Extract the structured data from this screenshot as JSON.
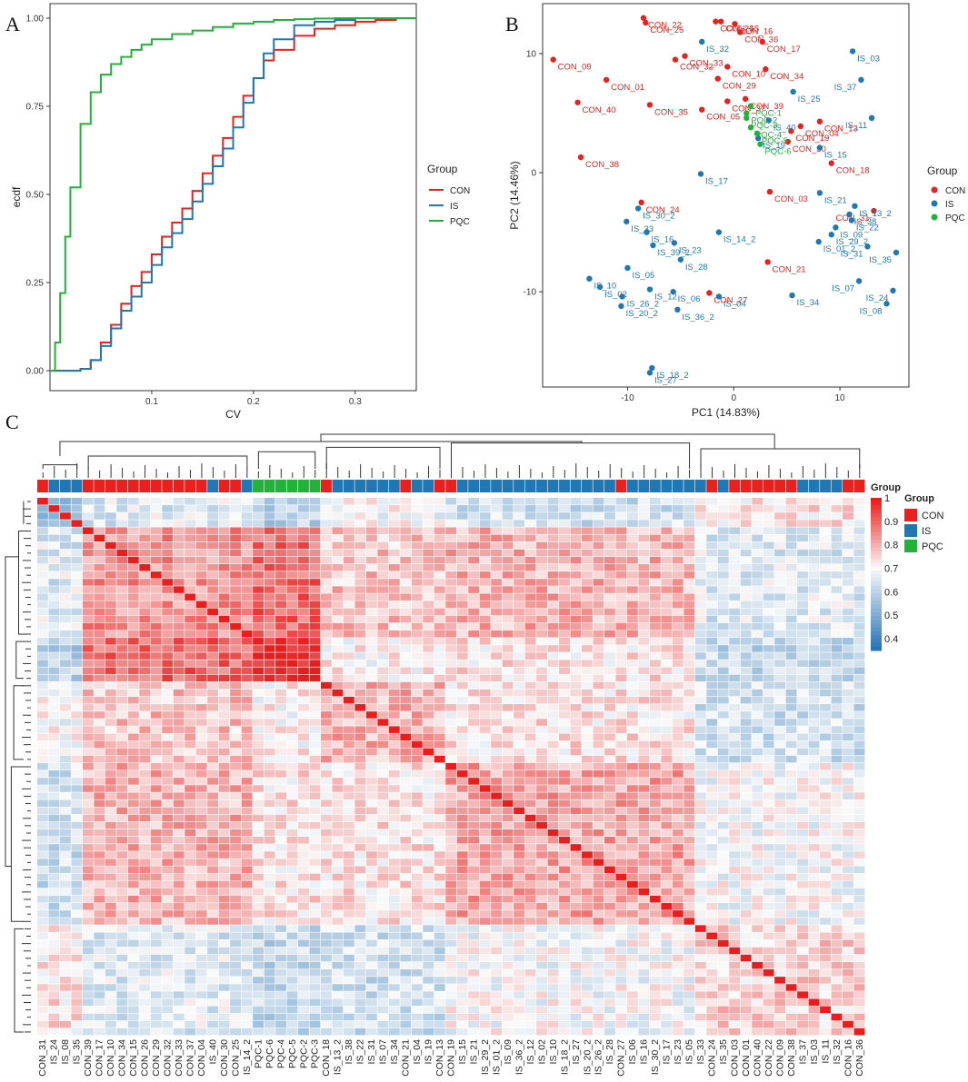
{
  "panel_labels": {
    "a": "A",
    "b": "B",
    "c": "C"
  },
  "colors": {
    "CON": "#e8211f",
    "IS": "#1f78b4",
    "PQC": "#22b23a"
  },
  "chart_data": [
    {
      "id": "A",
      "type": "line",
      "title": "",
      "xlabel": "CV",
      "ylabel": "ecdf",
      "xlim": [
        0,
        0.36
      ],
      "ylim": [
        0,
        1
      ],
      "xticks": [
        0.1,
        0.2,
        0.3
      ],
      "yticks": [
        0,
        0.25,
        0.5,
        0.75,
        1
      ],
      "xtick_labels": [
        "0.1",
        "0.2",
        "0.3"
      ],
      "ytick_labels": [
        "0.00",
        "0.25",
        "0.50",
        "0.75",
        "1.00"
      ],
      "legend_title": "Group",
      "legend_position": "right",
      "series": [
        {
          "name": "CON",
          "x": [
            0,
            0.025,
            0.03,
            0.04,
            0.05,
            0.06,
            0.07,
            0.08,
            0.09,
            0.1,
            0.11,
            0.12,
            0.13,
            0.14,
            0.15,
            0.16,
            0.17,
            0.18,
            0.19,
            0.2,
            0.21,
            0.22,
            0.24,
            0.26,
            0.28,
            0.3,
            0.32,
            0.34,
            0.36
          ],
          "y": [
            0,
            0,
            0.005,
            0.03,
            0.08,
            0.13,
            0.19,
            0.24,
            0.28,
            0.33,
            0.38,
            0.42,
            0.46,
            0.51,
            0.56,
            0.61,
            0.66,
            0.72,
            0.78,
            0.83,
            0.88,
            0.91,
            0.95,
            0.97,
            0.98,
            0.99,
            0.995,
            1.0,
            1.0
          ]
        },
        {
          "name": "IS",
          "x": [
            0,
            0.025,
            0.03,
            0.04,
            0.05,
            0.06,
            0.07,
            0.08,
            0.09,
            0.1,
            0.11,
            0.12,
            0.13,
            0.14,
            0.15,
            0.16,
            0.17,
            0.18,
            0.19,
            0.2,
            0.21,
            0.22,
            0.24,
            0.26,
            0.28,
            0.3,
            0.32,
            0.34,
            0.36
          ],
          "y": [
            0,
            0,
            0.005,
            0.03,
            0.07,
            0.12,
            0.17,
            0.21,
            0.25,
            0.3,
            0.35,
            0.39,
            0.43,
            0.48,
            0.53,
            0.58,
            0.63,
            0.69,
            0.76,
            0.83,
            0.9,
            0.94,
            0.98,
            0.99,
            0.995,
            1.0,
            1.0,
            1.0,
            1.0
          ]
        },
        {
          "name": "PQC",
          "x": [
            0,
            0.005,
            0.01,
            0.015,
            0.02,
            0.03,
            0.04,
            0.05,
            0.06,
            0.07,
            0.08,
            0.09,
            0.1,
            0.12,
            0.14,
            0.16,
            0.18,
            0.2,
            0.22,
            0.24,
            0.26,
            0.28,
            0.3,
            0.32,
            0.34,
            0.36
          ],
          "y": [
            0,
            0.08,
            0.22,
            0.38,
            0.52,
            0.7,
            0.79,
            0.84,
            0.87,
            0.89,
            0.91,
            0.925,
            0.94,
            0.955,
            0.965,
            0.975,
            0.985,
            0.99,
            0.995,
            0.997,
            0.999,
            1.0,
            1.0,
            1.0,
            1.0,
            1.0
          ]
        }
      ]
    },
    {
      "id": "B",
      "type": "scatter",
      "title": "",
      "xlabel": "PC1 (14.83%)",
      "ylabel": "PC2 (14.46%)",
      "xlim": [
        -18,
        16.5
      ],
      "ylim": [
        -18,
        14.2
      ],
      "xticks": [
        -10,
        0,
        10
      ],
      "yticks": [
        -10,
        0,
        10
      ],
      "legend_title": "Group",
      "legend_position": "right",
      "legend_entries": [
        "CON",
        "IS",
        "PQC"
      ],
      "points": [
        {
          "label": "CON_22",
          "group": "CON",
          "x": -8.5,
          "y": 13.0
        },
        {
          "label": "CON_25",
          "group": "CON",
          "x": -8.3,
          "y": 12.6
        },
        {
          "label": "CON_26",
          "group": "CON",
          "x": -1.7,
          "y": 12.7
        },
        {
          "label": "CON_15",
          "group": "CON",
          "x": -1.2,
          "y": 12.7
        },
        {
          "label": "CON_16",
          "group": "CON",
          "x": 0.1,
          "y": 12.5
        },
        {
          "label": "CON_36",
          "group": "CON",
          "x": 0.6,
          "y": 11.8
        },
        {
          "label": "CON_17",
          "group": "CON",
          "x": 2.7,
          "y": 11.0
        },
        {
          "label": "CON_33",
          "group": "CON",
          "x": -4.6,
          "y": 9.8
        },
        {
          "label": "CON_32",
          "group": "CON",
          "x": -5.5,
          "y": 9.5
        },
        {
          "label": "CON_09",
          "group": "CON",
          "x": -17.0,
          "y": 9.5
        },
        {
          "label": "CON_10",
          "group": "CON",
          "x": -0.6,
          "y": 8.9
        },
        {
          "label": "CON_34",
          "group": "CON",
          "x": 3.0,
          "y": 8.7
        },
        {
          "label": "CON_29",
          "group": "CON",
          "x": -1.5,
          "y": 7.9
        },
        {
          "label": "CON_01",
          "group": "CON",
          "x": -12.0,
          "y": 7.8
        },
        {
          "label": "CON_40",
          "group": "CON",
          "x": -14.7,
          "y": 5.9
        },
        {
          "label": "CON_35",
          "group": "CON",
          "x": -7.9,
          "y": 5.7
        },
        {
          "label": "CON_37",
          "group": "CON",
          "x": -0.6,
          "y": 6.0
        },
        {
          "label": "CON_39",
          "group": "CON",
          "x": 1.1,
          "y": 6.2
        },
        {
          "label": "CON_05",
          "group": "CON",
          "x": -3.0,
          "y": 5.3
        },
        {
          "label": "CON_19",
          "group": "CON",
          "x": 5.4,
          "y": 3.5
        },
        {
          "label": "CON_13",
          "group": "CON",
          "x": 8.1,
          "y": 4.3
        },
        {
          "label": "CON_04",
          "group": "CON",
          "x": 6.3,
          "y": 3.9
        },
        {
          "label": "CON_30",
          "group": "CON",
          "x": 5.1,
          "y": 2.6
        },
        {
          "label": "CON_38",
          "group": "CON",
          "x": -14.4,
          "y": 1.3
        },
        {
          "label": "CON_18",
          "group": "CON",
          "x": 9.2,
          "y": 0.8
        },
        {
          "label": "CON_24",
          "group": "CON",
          "x": -8.7,
          "y": -2.5
        },
        {
          "label": "CON_03",
          "group": "CON",
          "x": 3.4,
          "y": -1.6
        },
        {
          "label": "CON_31",
          "group": "CON",
          "x": 13.2,
          "y": -3.2
        },
        {
          "label": "CON_21",
          "group": "CON",
          "x": 3.2,
          "y": -7.5
        },
        {
          "label": "CON_27",
          "group": "CON",
          "x": -2.3,
          "y": -10.1
        },
        {
          "label": "IS_32",
          "group": "IS",
          "x": -3.0,
          "y": 11.0
        },
        {
          "label": "IS_03",
          "group": "IS",
          "x": 11.2,
          "y": 10.2
        },
        {
          "label": "IS_37",
          "group": "IS",
          "x": 12.0,
          "y": 7.8
        },
        {
          "label": "IS_25",
          "group": "IS",
          "x": 5.6,
          "y": 6.8
        },
        {
          "label": "IS_40",
          "group": "IS",
          "x": 3.3,
          "y": 4.4
        },
        {
          "label": "IS_11",
          "group": "IS",
          "x": 13.0,
          "y": 4.6
        },
        {
          "label": "IS_19",
          "group": "IS",
          "x": 2.3,
          "y": 2.9
        },
        {
          "label": "IS_15",
          "group": "IS",
          "x": 8.1,
          "y": 2.1
        },
        {
          "label": "IS_17",
          "group": "IS",
          "x": -3.1,
          "y": -0.1
        },
        {
          "label": "IS_21",
          "group": "IS",
          "x": 8.1,
          "y": -1.7
        },
        {
          "label": "IS_13_2",
          "group": "IS",
          "x": 11.4,
          "y": -2.8
        },
        {
          "label": "IS_38",
          "group": "IS",
          "x": 10.9,
          "y": -3.5
        },
        {
          "label": "IS_22",
          "group": "IS",
          "x": 11.1,
          "y": -4.0
        },
        {
          "label": "IS_09",
          "group": "IS",
          "x": 9.6,
          "y": -4.6
        },
        {
          "label": "IS_29_2",
          "group": "IS",
          "x": 9.2,
          "y": -5.2
        },
        {
          "label": "IS_01_2",
          "group": "IS",
          "x": 8.0,
          "y": -5.8
        },
        {
          "label": "IS_31",
          "group": "IS",
          "x": 12.6,
          "y": -6.2
        },
        {
          "label": "IS_35",
          "group": "IS",
          "x": 15.3,
          "y": -6.7
        },
        {
          "label": "IS_30_2",
          "group": "IS",
          "x": -9.0,
          "y": -3.0
        },
        {
          "label": "IS_33",
          "group": "IS",
          "x": -10.1,
          "y": -4.1
        },
        {
          "label": "IS_14_2",
          "group": "IS",
          "x": -1.4,
          "y": -5.0
        },
        {
          "label": "IS_16",
          "group": "IS",
          "x": -8.2,
          "y": -5.0
        },
        {
          "label": "IS_39_2",
          "group": "IS",
          "x": -7.6,
          "y": -6.1
        },
        {
          "label": "IS_23",
          "group": "IS",
          "x": -5.6,
          "y": -5.9
        },
        {
          "label": "IS_28",
          "group": "IS",
          "x": -5.0,
          "y": -7.3
        },
        {
          "label": "IS_05",
          "group": "IS",
          "x": -10.0,
          "y": -8.0
        },
        {
          "label": "IS_10",
          "group": "IS",
          "x": -13.6,
          "y": -8.9
        },
        {
          "label": "IS_02",
          "group": "IS",
          "x": -12.6,
          "y": -9.6
        },
        {
          "label": "IS_12",
          "group": "IS",
          "x": -7.9,
          "y": -9.8
        },
        {
          "label": "IS_06",
          "group": "IS",
          "x": -5.7,
          "y": -10.0
        },
        {
          "label": "IS_04",
          "group": "IS",
          "x": -1.4,
          "y": -10.4
        },
        {
          "label": "IS_26_2",
          "group": "IS",
          "x": -10.5,
          "y": -10.4
        },
        {
          "label": "IS_20_2",
          "group": "IS",
          "x": -10.6,
          "y": -11.2
        },
        {
          "label": "IS_36_2",
          "group": "IS",
          "x": -5.3,
          "y": -11.5
        },
        {
          "label": "IS_34",
          "group": "IS",
          "x": 5.5,
          "y": -10.3
        },
        {
          "label": "IS_07",
          "group": "IS",
          "x": 11.8,
          "y": -9.1
        },
        {
          "label": "IS_24",
          "group": "IS",
          "x": 15.0,
          "y": -9.9
        },
        {
          "label": "IS_08",
          "group": "IS",
          "x": 14.4,
          "y": -11.0
        },
        {
          "label": "IS_18_2",
          "group": "IS",
          "x": -7.7,
          "y": -16.4
        },
        {
          "label": "IS_27",
          "group": "IS",
          "x": -7.9,
          "y": -16.8
        },
        {
          "label": "PQC-1",
          "group": "PQC",
          "x": 1.6,
          "y": 5.6
        },
        {
          "label": "PQC-2",
          "group": "PQC",
          "x": 1.2,
          "y": 5.0
        },
        {
          "label": "PQC-3",
          "group": "PQC",
          "x": 1.2,
          "y": 4.6
        },
        {
          "label": "PQC-4",
          "group": "PQC",
          "x": 1.6,
          "y": 3.8
        },
        {
          "label": "PQC-5",
          "group": "PQC",
          "x": 2.2,
          "y": 3.3
        },
        {
          "label": "PQC-6",
          "group": "PQC",
          "x": 2.5,
          "y": 2.4
        }
      ]
    },
    {
      "id": "C",
      "type": "heatmap",
      "title": "",
      "legend_title": "Group",
      "colorbar_title": "Group",
      "colorbar_ticks": [
        "1",
        "0.9",
        "0.8",
        "0.7",
        "0.6",
        "0.5",
        "0.4"
      ],
      "colorbar_range": [
        0.35,
        1.0
      ],
      "legend_entries": [
        "CON",
        "IS",
        "PQC"
      ],
      "column_labels": [
        "CON_31",
        "IS_24",
        "IS_08",
        "IS_35",
        "CON_39",
        "CON_17",
        "CON_10",
        "CON_34",
        "CON_15",
        "CON_26",
        "CON_29",
        "CON_32",
        "CON_33",
        "CON_37",
        "CON_04",
        "IS_40",
        "CON_30",
        "CON_25",
        "IS_14_2",
        "PQC-1",
        "PQC-6",
        "PQC-4",
        "PQC-5",
        "PQC-2",
        "PQC-3",
        "CON_18",
        "IS_13_2",
        "IS_38",
        "IS_22",
        "IS_31",
        "IS_07",
        "IS_34",
        "CON_21",
        "IS_04",
        "IS_19",
        "CON_13",
        "CON_19",
        "IS_15",
        "IS_21",
        "IS_29_2",
        "IS_01_2",
        "IS_09",
        "IS_36_2",
        "IS_12",
        "IS_02",
        "IS_10",
        "IS_18_2",
        "IS_27",
        "IS_20_2",
        "IS_26_2",
        "IS_28",
        "CON_27",
        "IS_06",
        "IS_16",
        "IS_30_2",
        "IS_17",
        "IS_23",
        "IS_05",
        "IS_33",
        "CON_24",
        "IS_35",
        "CON_03",
        "CON_01",
        "CON_40",
        "CON_22",
        "CON_09",
        "CON_38",
        "IS_37",
        "IS_03",
        "IS_11",
        "IS_32",
        "CON_16",
        "CON_36"
      ],
      "column_groups": [
        "CON",
        "IS",
        "IS",
        "IS",
        "CON",
        "CON",
        "CON",
        "CON",
        "CON",
        "CON",
        "CON",
        "CON",
        "CON",
        "CON",
        "CON",
        "IS",
        "CON",
        "CON",
        "IS",
        "PQC",
        "PQC",
        "PQC",
        "PQC",
        "PQC",
        "PQC",
        "CON",
        "IS",
        "IS",
        "IS",
        "IS",
        "IS",
        "IS",
        "CON",
        "IS",
        "IS",
        "CON",
        "CON",
        "IS",
        "IS",
        "IS",
        "IS",
        "IS",
        "IS",
        "IS",
        "IS",
        "IS",
        "IS",
        "IS",
        "IS",
        "IS",
        "IS",
        "CON",
        "IS",
        "IS",
        "IS",
        "IS",
        "IS",
        "IS",
        "IS",
        "CON",
        "IS",
        "CON",
        "CON",
        "CON",
        "CON",
        "CON",
        "CON",
        "IS",
        "IS",
        "IS",
        "IS",
        "CON",
        "CON"
      ],
      "block_means": [
        [
          0.58,
          0.66,
          0.6,
          0.7,
          0.64,
          0.74
        ],
        [
          0.66,
          0.84,
          0.9,
          0.78,
          0.8,
          0.66
        ],
        [
          0.6,
          0.9,
          0.98,
          0.72,
          0.74,
          0.62
        ],
        [
          0.7,
          0.78,
          0.72,
          0.8,
          0.74,
          0.64
        ],
        [
          0.64,
          0.8,
          0.74,
          0.74,
          0.82,
          0.7
        ],
        [
          0.74,
          0.66,
          0.62,
          0.64,
          0.7,
          0.76
        ]
      ],
      "block_bounds": [
        0,
        4,
        19,
        25,
        36,
        58,
        73
      ]
    }
  ]
}
